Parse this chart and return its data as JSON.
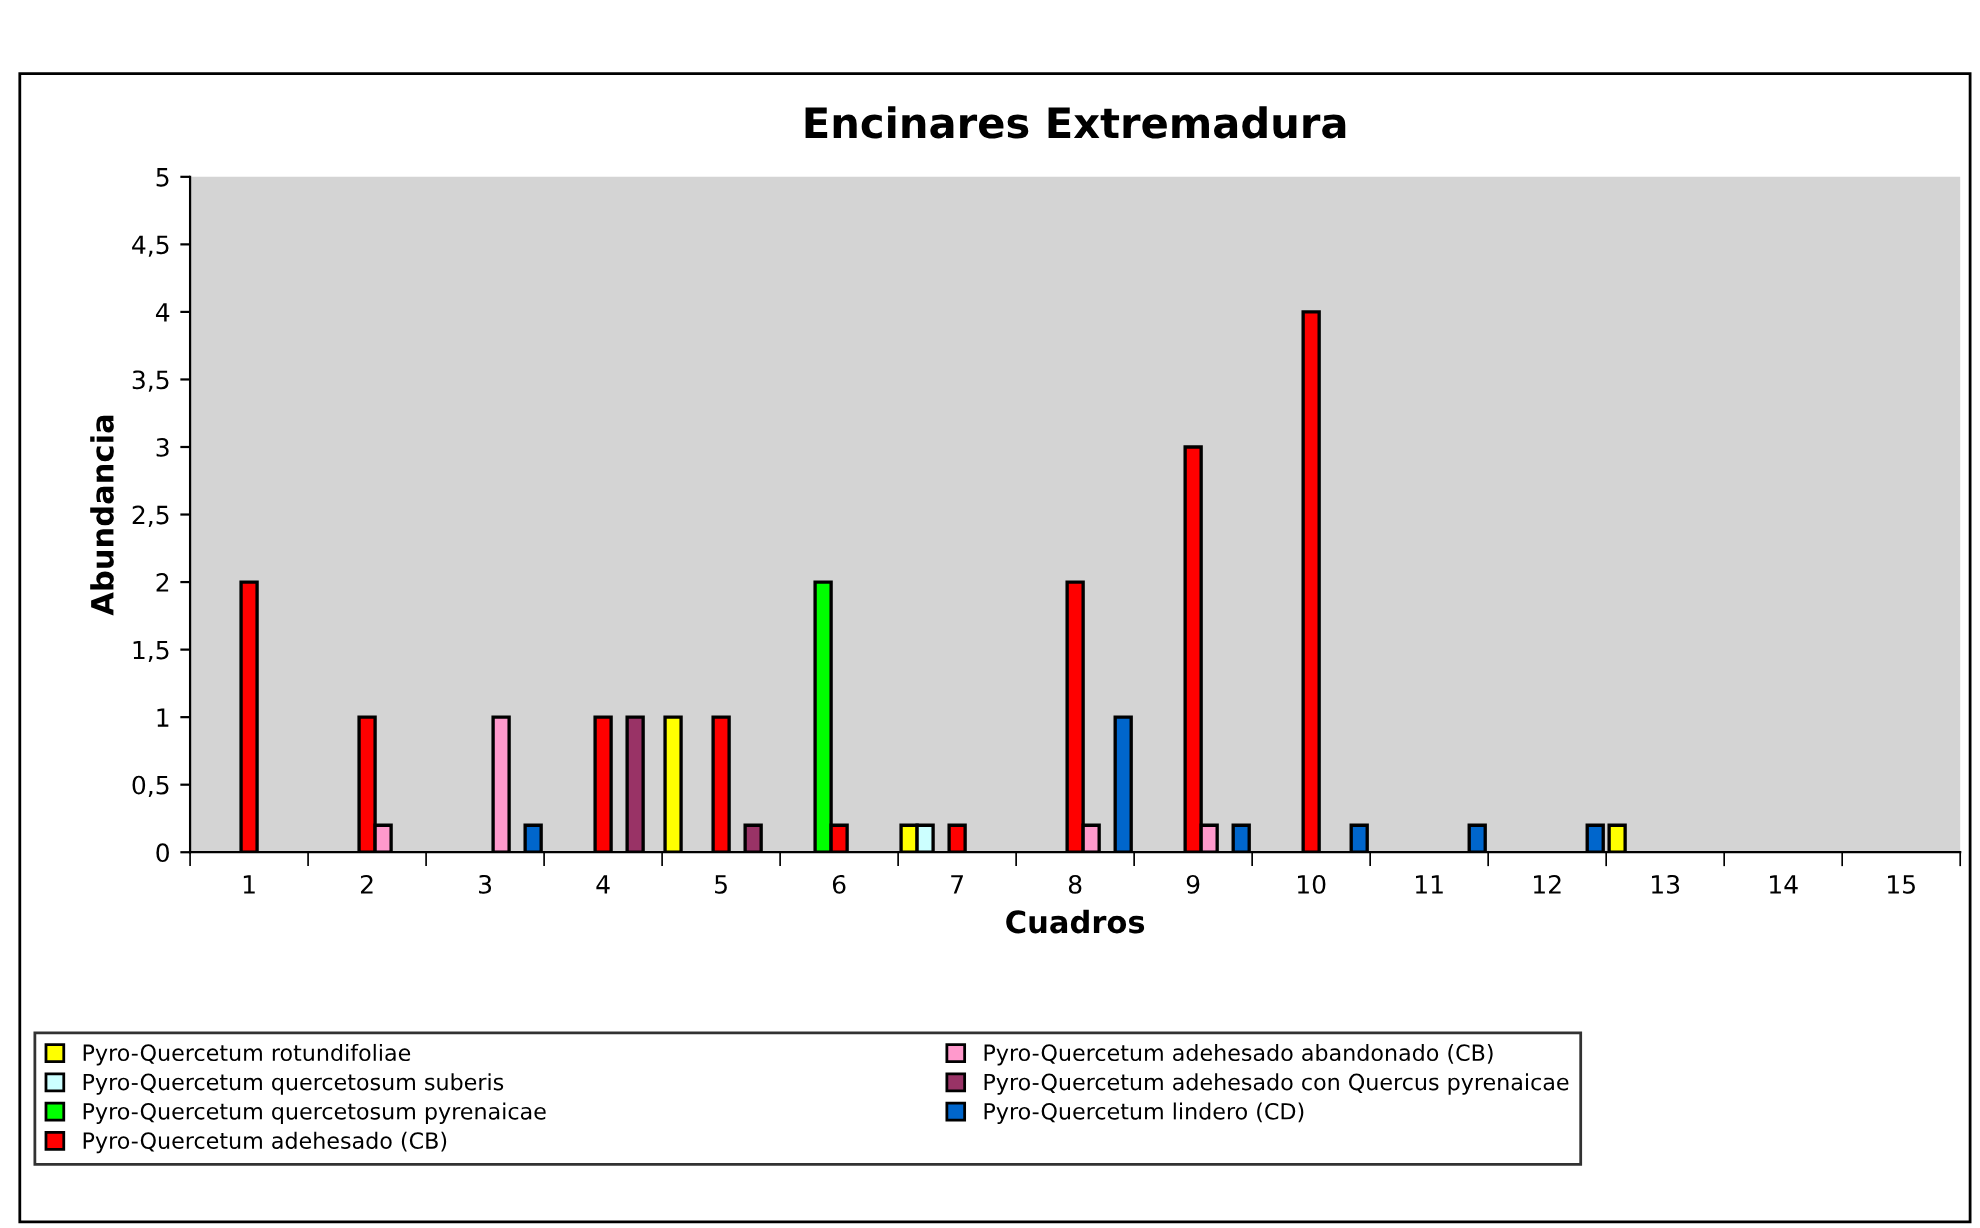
{
  "chart_data": {
    "type": "bar",
    "title": "Encinares Extremadura",
    "xlabel": "Cuadros",
    "ylabel": "Abundancia",
    "categories": [
      "1",
      "2",
      "3",
      "4",
      "5",
      "6",
      "7",
      "8",
      "9",
      "10",
      "11",
      "12",
      "13",
      "14",
      "15"
    ],
    "series": [
      {
        "name": "Pyro-Quercetum rotundifoliae",
        "color": "#ffff00",
        "values": [
          null,
          null,
          null,
          null,
          1,
          null,
          0.2,
          null,
          null,
          null,
          null,
          null,
          0.2,
          null,
          null
        ]
      },
      {
        "name": "Pyro-Quercetum quercetosum suberis",
        "color": "#ccffff",
        "values": [
          null,
          null,
          null,
          null,
          null,
          null,
          0.2,
          null,
          null,
          null,
          null,
          null,
          null,
          null,
          null
        ]
      },
      {
        "name": "Pyro-Quercetum quercetosum pyrenaicae",
        "color": "#00ff00",
        "values": [
          null,
          null,
          null,
          null,
          null,
          2,
          null,
          null,
          null,
          null,
          null,
          null,
          null,
          null,
          null
        ]
      },
      {
        "name": "Pyro-Quercetum adehesado (CB)",
        "color": "#ff0000",
        "values": [
          2,
          1,
          null,
          1,
          1,
          0.2,
          0.2,
          2,
          3,
          4,
          null,
          null,
          null,
          null,
          null
        ]
      },
      {
        "name": "Pyro-Quercetum adehesado abandonado (CB)",
        "color": "#ff99cc",
        "values": [
          null,
          0.2,
          1,
          null,
          null,
          null,
          null,
          0.2,
          0.2,
          null,
          null,
          null,
          null,
          null,
          null
        ]
      },
      {
        "name": "Pyro-Quercetum adehesado con Quercus pyrenaicae",
        "color": "#993366",
        "values": [
          null,
          null,
          null,
          1,
          0.2,
          null,
          null,
          null,
          null,
          null,
          null,
          null,
          null,
          null,
          null
        ]
      },
      {
        "name": "Pyro-Quercetum lindero (CD)",
        "color": "#0066cc",
        "values": [
          null,
          null,
          0.2,
          null,
          null,
          null,
          null,
          1,
          0.2,
          0.2,
          0.2,
          0.2,
          null,
          null,
          null
        ]
      }
    ],
    "ylim": [
      0,
      5
    ],
    "yticks": [
      0,
      {
        "value": 0.5,
        "label": "0,5"
      },
      1,
      {
        "value": 1.5,
        "label": "1,5"
      },
      2,
      {
        "value": 2.5,
        "label": "2,5"
      },
      3,
      {
        "value": 3.5,
        "label": "3,5"
      },
      4,
      {
        "value": 4.5,
        "label": "4,5"
      },
      5
    ],
    "grid": false,
    "legend": "bottom"
  }
}
